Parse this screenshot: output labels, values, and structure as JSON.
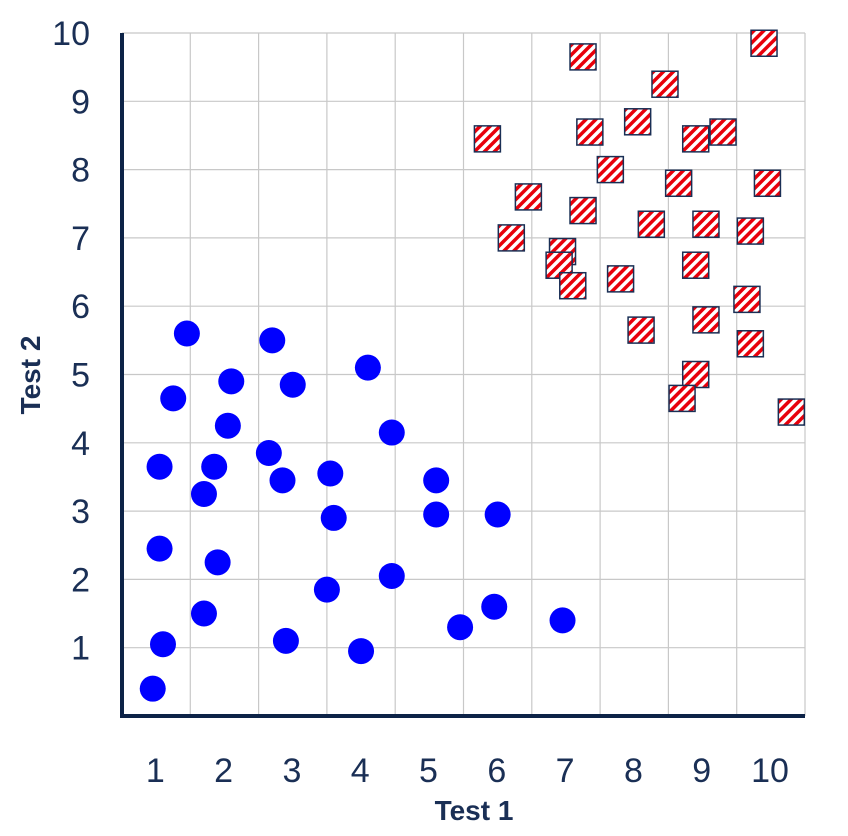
{
  "chart_data": {
    "type": "scatter",
    "title": "",
    "xlabel": "Test 1",
    "ylabel": "Test 2",
    "xlim": [
      0,
      10
    ],
    "ylim": [
      0,
      10
    ],
    "xticks": [
      "1",
      "2",
      "3",
      "4",
      "5",
      "6",
      "7",
      "8",
      "9",
      "10"
    ],
    "yticks": [
      "1",
      "2",
      "3",
      "4",
      "5",
      "6",
      "7",
      "8",
      "9",
      "10"
    ],
    "grid": true,
    "colors": {
      "axis": "#0d2347",
      "grid": "#c8c8c8",
      "tick_text": "#1a2f55",
      "circle": "#0000ff",
      "square_fill": "#ffffff",
      "square_stripe": "#e8000b",
      "square_border": "#1a2f55"
    },
    "series": [
      {
        "marker": "circle",
        "points": [
          [
            0.95,
            5.6
          ],
          [
            2.2,
            5.5
          ],
          [
            3.6,
            5.1
          ],
          [
            1.6,
            4.9
          ],
          [
            2.5,
            4.85
          ],
          [
            0.75,
            4.65
          ],
          [
            1.55,
            4.25
          ],
          [
            3.95,
            4.15
          ],
          [
            2.15,
            3.85
          ],
          [
            0.55,
            3.65
          ],
          [
            1.35,
            3.65
          ],
          [
            3.05,
            3.55
          ],
          [
            4.6,
            3.45
          ],
          [
            2.35,
            3.45
          ],
          [
            1.2,
            3.25
          ],
          [
            5.5,
            2.95
          ],
          [
            4.6,
            2.95
          ],
          [
            3.1,
            2.9
          ],
          [
            0.55,
            2.45
          ],
          [
            1.4,
            2.25
          ],
          [
            3.95,
            2.05
          ],
          [
            3.0,
            1.85
          ],
          [
            5.45,
            1.6
          ],
          [
            1.2,
            1.5
          ],
          [
            6.45,
            1.4
          ],
          [
            4.95,
            1.3
          ],
          [
            2.4,
            1.1
          ],
          [
            0.6,
            1.05
          ],
          [
            3.5,
            0.95
          ],
          [
            0.45,
            0.4
          ]
        ]
      },
      {
        "marker": "hatched-square",
        "points": [
          [
            9.4,
            9.85
          ],
          [
            6.75,
            9.65
          ],
          [
            7.95,
            9.25
          ],
          [
            7.55,
            8.7
          ],
          [
            6.85,
            8.55
          ],
          [
            8.8,
            8.55
          ],
          [
            8.4,
            8.45
          ],
          [
            5.35,
            8.45
          ],
          [
            7.15,
            8.0
          ],
          [
            8.15,
            7.8
          ],
          [
            9.45,
            7.8
          ],
          [
            5.95,
            7.6
          ],
          [
            6.75,
            7.4
          ],
          [
            7.75,
            7.2
          ],
          [
            8.55,
            7.2
          ],
          [
            9.2,
            7.1
          ],
          [
            5.7,
            7.0
          ],
          [
            6.45,
            6.8
          ],
          [
            6.4,
            6.6
          ],
          [
            8.4,
            6.6
          ],
          [
            7.3,
            6.4
          ],
          [
            6.6,
            6.3
          ],
          [
            9.15,
            6.1
          ],
          [
            8.55,
            5.8
          ],
          [
            7.6,
            5.65
          ],
          [
            9.2,
            5.45
          ],
          [
            8.4,
            5.0
          ],
          [
            8.2,
            4.65
          ],
          [
            9.8,
            4.45
          ]
        ]
      }
    ]
  }
}
